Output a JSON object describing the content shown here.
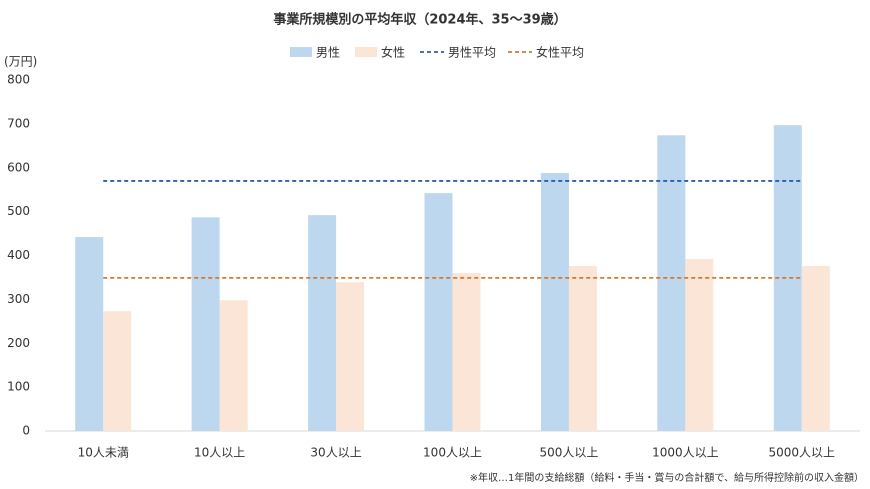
{
  "chart_data": {
    "type": "bar",
    "title": "事業所規模別の平均年収（2024年、35～39歳）",
    "y_label": "(万円)",
    "footnote": "※年収…1年間の支給総額（給料・手当・賞与の合計額で、給与所得控除前の収入金額）",
    "categories": [
      "10人未満",
      "10人以上",
      "30人以上",
      "100人以上",
      "500人以上",
      "1000人以上",
      "5000人以上"
    ],
    "series": [
      {
        "name": "男性",
        "color": "#bdd7ee",
        "values": [
          442,
          487,
          492,
          542,
          588,
          674,
          697
        ]
      },
      {
        "name": "女性",
        "color": "#fbe5d6",
        "values": [
          273,
          298,
          339,
          360,
          376,
          392,
          376
        ]
      }
    ],
    "lines": [
      {
        "name": "男性平均",
        "color": "#2f5ea8",
        "value": 570
      },
      {
        "name": "女性平均",
        "color": "#d8782e",
        "value": 349
      }
    ],
    "ylim": [
      0,
      800
    ],
    "yticks": [
      0,
      100,
      200,
      300,
      400,
      500,
      600,
      700,
      800
    ]
  }
}
